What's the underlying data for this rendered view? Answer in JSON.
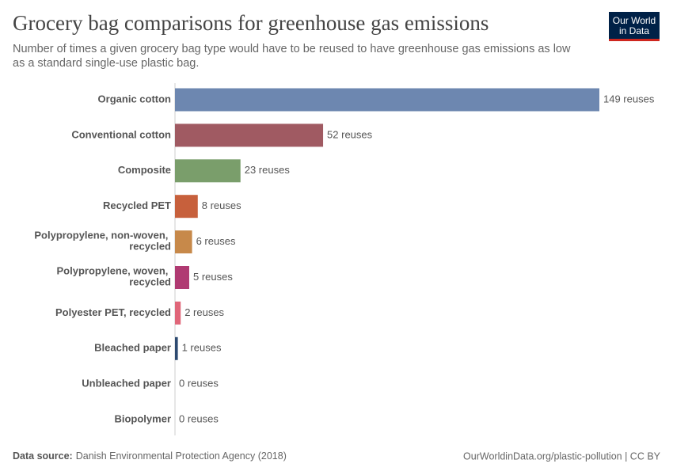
{
  "chart_data": {
    "type": "hbar",
    "title": "Grocery bag comparisons for greenhouse gas emissions",
    "subtitle": "Number of times a given grocery bag type would have to be reused to have greenhouse gas emissions as low as a standard single-use plastic bag.",
    "categories": [
      "Organic cotton",
      "Conventional cotton",
      "Composite",
      "Recycled PET",
      "Polypropylene, non-woven, recycled",
      "Polypropylene, woven, recycled",
      "Polyester PET, recycled",
      "Bleached paper",
      "Unbleached paper",
      "Biopolymer"
    ],
    "values": [
      149,
      52,
      23,
      8,
      6,
      5,
      2,
      1,
      0,
      0
    ],
    "value_labels": [
      "149 reuses",
      "52 reuses",
      "23 reuses",
      "8 reuses",
      "6 reuses",
      "5 reuses",
      "2 reuses",
      "1 reuses",
      "0 reuses",
      "0 reuses"
    ],
    "colors": [
      "#6d87b0",
      "#a05a62",
      "#7a9e6b",
      "#c7603c",
      "#c7894a",
      "#b03a72",
      "#e06679",
      "#2d4a70",
      "#8c8c8c",
      "#8c8c8c"
    ],
    "source_label": "Data source:",
    "source": "Danish Environmental Protection Agency (2018)",
    "footer_url": "OurWorldinData.org/plastic-pollution | CC BY",
    "logo": [
      "Our World",
      "in Data"
    ]
  }
}
